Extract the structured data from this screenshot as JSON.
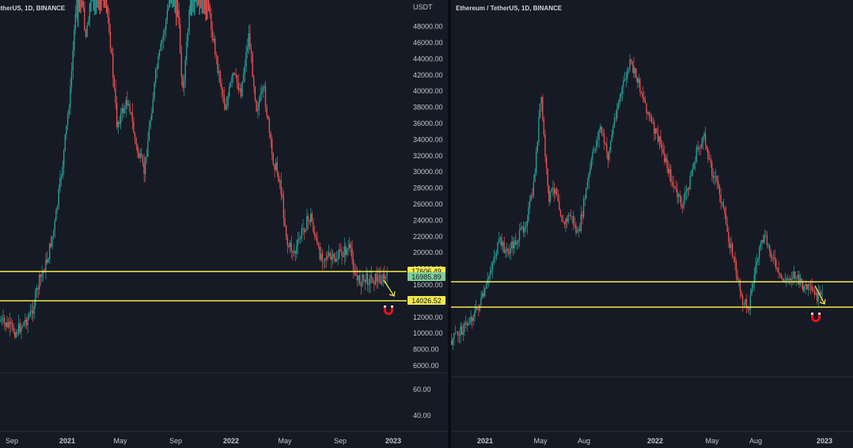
{
  "left_chart": {
    "title": "etherUS, 1D, BINANCE",
    "currency_label": "USDT",
    "y_ticks": [
      "48000.00",
      "46000.00",
      "44000.00",
      "42000.00",
      "40000.00",
      "38000.00",
      "36000.00",
      "34000.00",
      "32000.00",
      "30000.00",
      "28000.00",
      "26000.00",
      "24000.00",
      "22000.00",
      "20000.00",
      "18000.00",
      "16000.00",
      "12000.00",
      "10000.00",
      "8000.00",
      "6000.00"
    ],
    "sub_ticks": [
      "60.00",
      "40.00"
    ],
    "x_ticks": [
      {
        "label": "Sep",
        "bold": false
      },
      {
        "label": "2021",
        "bold": true
      },
      {
        "label": "May",
        "bold": false
      },
      {
        "label": "Sep",
        "bold": false
      },
      {
        "label": "2022",
        "bold": true
      },
      {
        "label": "May",
        "bold": false
      },
      {
        "label": "Sep",
        "bold": false
      },
      {
        "label": "2023",
        "bold": true
      }
    ],
    "levels": [
      {
        "value": "17606.49",
        "bg": "#f5e94a",
        "fg": "#131722"
      },
      {
        "value": "16985.89",
        "bg": "#7fcf99",
        "fg": "#131722"
      },
      {
        "value": "14026.52",
        "bg": "#f5e94a",
        "fg": "#131722"
      }
    ],
    "chart_data": {
      "type": "candlestick",
      "price_range": [
        5000,
        50000
      ],
      "path": [
        [
          0,
          11500
        ],
        [
          0.04,
          10200
        ],
        [
          0.08,
          12500
        ],
        [
          0.1,
          16500
        ],
        [
          0.12,
          19000
        ],
        [
          0.14,
          23500
        ],
        [
          0.16,
          31000
        ],
        [
          0.18,
          40000
        ],
        [
          0.2,
          55000
        ],
        [
          0.22,
          47000
        ],
        [
          0.25,
          58000
        ],
        [
          0.28,
          48000
        ],
        [
          0.3,
          36000
        ],
        [
          0.33,
          39000
        ],
        [
          0.35,
          33000
        ],
        [
          0.37,
          30000
        ],
        [
          0.4,
          42000
        ],
        [
          0.42,
          47000
        ],
        [
          0.45,
          55000
        ],
        [
          0.47,
          40000
        ],
        [
          0.5,
          57000
        ],
        [
          0.52,
          60000
        ],
        [
          0.54,
          49000
        ],
        [
          0.56,
          43000
        ],
        [
          0.58,
          38000
        ],
        [
          0.6,
          42000
        ],
        [
          0.62,
          40000
        ],
        [
          0.64,
          47000
        ],
        [
          0.66,
          38000
        ],
        [
          0.68,
          40000
        ],
        [
          0.7,
          32000
        ],
        [
          0.72,
          29000
        ],
        [
          0.74,
          21000
        ],
        [
          0.76,
          20000
        ],
        [
          0.78,
          23000
        ],
        [
          0.8,
          24500
        ],
        [
          0.82,
          20000
        ],
        [
          0.84,
          19500
        ],
        [
          0.86,
          19000
        ],
        [
          0.88,
          20000
        ],
        [
          0.9,
          20500
        ],
        [
          0.92,
          16500
        ],
        [
          0.95,
          16800
        ]
      ]
    }
  },
  "right_chart": {
    "title": "Ethereum / TetherUS, 1D, BINANCE",
    "x_ticks": [
      {
        "label": "2021",
        "bold": true
      },
      {
        "label": "May",
        "bold": false
      },
      {
        "label": "Aug",
        "bold": false
      },
      {
        "label": "2022",
        "bold": true
      },
      {
        "label": "May",
        "bold": false
      },
      {
        "label": "Aug",
        "bold": false
      },
      {
        "label": "2023",
        "bold": true
      }
    ],
    "chart_data": {
      "type": "candlestick",
      "path": [
        [
          0,
          430
        ],
        [
          0.04,
          410
        ],
        [
          0.07,
          390
        ],
        [
          0.09,
          370
        ],
        [
          0.11,
          330
        ],
        [
          0.13,
          305
        ],
        [
          0.15,
          320
        ],
        [
          0.18,
          300
        ],
        [
          0.2,
          280
        ],
        [
          0.22,
          240
        ],
        [
          0.24,
          120
        ],
        [
          0.26,
          250
        ],
        [
          0.28,
          235
        ],
        [
          0.3,
          285
        ],
        [
          0.32,
          270
        ],
        [
          0.34,
          300
        ],
        [
          0.36,
          245
        ],
        [
          0.38,
          195
        ],
        [
          0.4,
          160
        ],
        [
          0.42,
          200
        ],
        [
          0.44,
          145
        ],
        [
          0.46,
          110
        ],
        [
          0.48,
          80
        ],
        [
          0.5,
          100
        ],
        [
          0.52,
          130
        ],
        [
          0.54,
          160
        ],
        [
          0.56,
          180
        ],
        [
          0.58,
          210
        ],
        [
          0.6,
          240
        ],
        [
          0.62,
          260
        ],
        [
          0.64,
          230
        ],
        [
          0.66,
          190
        ],
        [
          0.68,
          175
        ],
        [
          0.7,
          215
        ],
        [
          0.72,
          240
        ],
        [
          0.74,
          290
        ],
        [
          0.76,
          330
        ],
        [
          0.78,
          380
        ],
        [
          0.8,
          385
        ],
        [
          0.82,
          330
        ],
        [
          0.84,
          300
        ],
        [
          0.86,
          320
        ],
        [
          0.88,
          350
        ],
        [
          0.9,
          355
        ],
        [
          0.92,
          345
        ],
        [
          0.94,
          360
        ],
        [
          0.96,
          365
        ],
        [
          0.98,
          375
        ]
      ]
    }
  },
  "colors": {
    "up": "#26a69a",
    "down": "#ef5350",
    "level_line": "#f5e94a",
    "arrow": "#f5e94a",
    "magnet": "#e8121b"
  },
  "icons": {
    "arrow": "arrow-down-right-icon",
    "magnet": "magnet-icon"
  }
}
